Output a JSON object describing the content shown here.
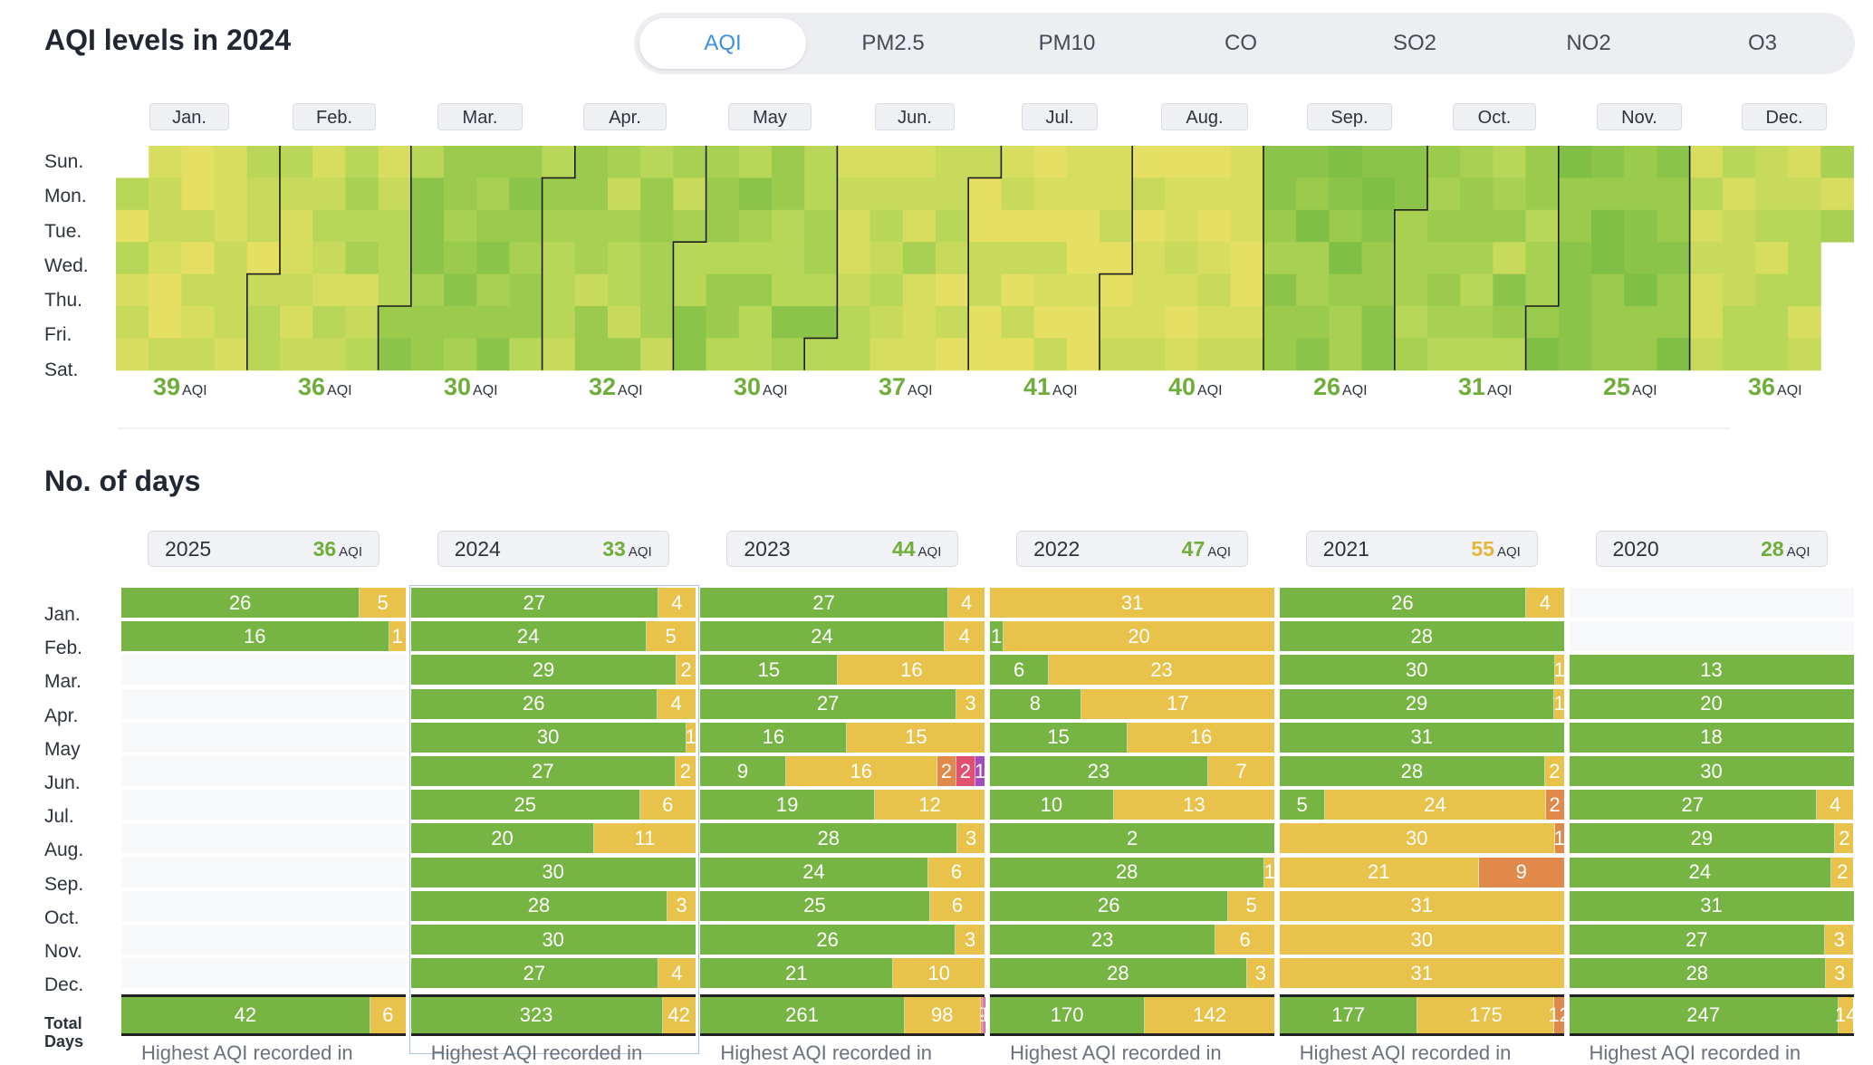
{
  "calendar": {
    "title": "AQI levels in 2024",
    "tabs": [
      {
        "label": "AQI",
        "active": true
      },
      {
        "label": "PM2.5",
        "active": false
      },
      {
        "label": "PM10",
        "active": false
      },
      {
        "label": "CO",
        "active": false
      },
      {
        "label": "SO2",
        "active": false
      },
      {
        "label": "NO2",
        "active": false
      },
      {
        "label": "O3",
        "active": false
      }
    ],
    "days": [
      "Sun.",
      "Mon.",
      "Tue.",
      "Wed.",
      "Thu.",
      "Fri.",
      "Sat."
    ],
    "months": [
      {
        "label": "Jan.",
        "avg": "39"
      },
      {
        "label": "Feb.",
        "avg": "36"
      },
      {
        "label": "Mar.",
        "avg": "30"
      },
      {
        "label": "Apr.",
        "avg": "32"
      },
      {
        "label": "May",
        "avg": "30"
      },
      {
        "label": "Jun.",
        "avg": "37"
      },
      {
        "label": "Jul.",
        "avg": "41"
      },
      {
        "label": "Aug.",
        "avg": "40"
      },
      {
        "label": "Sep.",
        "avg": "26"
      },
      {
        "label": "Oct.",
        "avg": "31"
      },
      {
        "label": "Nov.",
        "avg": "25"
      },
      {
        "label": "Dec.",
        "avg": "36"
      }
    ],
    "unit": "AQI"
  },
  "days_section": {
    "title": "No. of days",
    "colors": {
      "good": "#76b543",
      "moderate": "#e8c24a",
      "usg": "#e0894a",
      "unhealthy": "#e05070",
      "very_unhealthy": "#a54bc0",
      "avg_green": "#6fae3b",
      "avg_yellow": "#e3b53a"
    },
    "month_labels": [
      "Jan.",
      "Feb.",
      "Mar.",
      "Apr.",
      "May",
      "Jun.",
      "Jul.",
      "Aug.",
      "Sep.",
      "Oct.",
      "Nov.",
      "Dec."
    ],
    "total_label": "Total Days",
    "highest_text": "Highest AQI recorded in",
    "years": [
      {
        "year": "2025",
        "avg": "36",
        "avg_color": "green",
        "selected": false,
        "rows": [
          [
            26,
            5,
            0,
            0,
            0
          ],
          [
            16,
            1,
            0,
            0,
            0
          ],
          null,
          null,
          null,
          null,
          null,
          null,
          null,
          null,
          null,
          null
        ],
        "total": [
          42,
          6,
          0,
          0,
          0
        ]
      },
      {
        "year": "2024",
        "avg": "33",
        "avg_color": "green",
        "selected": true,
        "rows": [
          [
            27,
            4,
            0,
            0,
            0
          ],
          [
            24,
            5,
            0,
            0,
            0
          ],
          [
            29,
            2,
            0,
            0,
            0
          ],
          [
            26,
            4,
            0,
            0,
            0
          ],
          [
            30,
            1,
            0,
            0,
            0
          ],
          [
            27,
            2,
            0,
            0,
            0
          ],
          [
            25,
            6,
            0,
            0,
            0
          ],
          [
            20,
            11,
            0,
            0,
            0
          ],
          [
            30,
            0,
            0,
            0,
            0
          ],
          [
            28,
            3,
            0,
            0,
            0
          ],
          [
            30,
            0,
            0,
            0,
            0
          ],
          [
            27,
            4,
            0,
            0,
            0
          ]
        ],
        "total": [
          323,
          42,
          0,
          0,
          0
        ]
      },
      {
        "year": "2023",
        "avg": "44",
        "avg_color": "green",
        "selected": false,
        "rows": [
          [
            27,
            4,
            0,
            0,
            0
          ],
          [
            24,
            4,
            0,
            0,
            0
          ],
          [
            15,
            16,
            0,
            0,
            0
          ],
          [
            27,
            3,
            0,
            0,
            0
          ],
          [
            16,
            15,
            0,
            0,
            0
          ],
          [
            9,
            16,
            2,
            2,
            1
          ],
          [
            19,
            12,
            0,
            0,
            0
          ],
          [
            28,
            3,
            0,
            0,
            0
          ],
          [
            24,
            6,
            0,
            0,
            0
          ],
          [
            25,
            6,
            0,
            0,
            0
          ],
          [
            26,
            3,
            0,
            0,
            0
          ],
          [
            21,
            10,
            0,
            0,
            0
          ]
        ],
        "total": [
          261,
          98,
          2,
          2,
          1
        ]
      },
      {
        "year": "2022",
        "avg": "47",
        "avg_color": "green",
        "selected": false,
        "rows": [
          [
            0,
            31,
            0,
            0,
            0
          ],
          [
            1,
            20,
            0,
            0,
            0
          ],
          [
            6,
            23,
            0,
            0,
            0
          ],
          [
            8,
            17,
            0,
            0,
            0
          ],
          [
            15,
            16,
            0,
            0,
            0
          ],
          [
            23,
            7,
            0,
            0,
            0
          ],
          [
            10,
            13,
            0,
            0,
            0
          ],
          [
            2,
            0,
            0,
            0,
            0
          ],
          [
            28,
            1,
            0,
            0,
            0
          ],
          [
            26,
            5,
            0,
            0,
            0
          ],
          [
            23,
            6,
            0,
            0,
            0
          ],
          [
            28,
            3,
            0,
            0,
            0
          ]
        ],
        "total": [
          170,
          142,
          0,
          0,
          0
        ]
      },
      {
        "year": "2021",
        "avg": "55",
        "avg_color": "yellow",
        "selected": false,
        "rows": [
          [
            26,
            4,
            0,
            0,
            0
          ],
          [
            28,
            0,
            0,
            0,
            0
          ],
          [
            30,
            1,
            0,
            0,
            0
          ],
          [
            29,
            1,
            0,
            0,
            0
          ],
          [
            31,
            0,
            0,
            0,
            0
          ],
          [
            28,
            2,
            0,
            0,
            0
          ],
          [
            5,
            24,
            2,
            0,
            0
          ],
          [
            0,
            30,
            1,
            0,
            0
          ],
          [
            0,
            21,
            9,
            0,
            0
          ],
          [
            0,
            31,
            0,
            0,
            0
          ],
          [
            0,
            30,
            0,
            0,
            0
          ],
          [
            0,
            31,
            0,
            0,
            0
          ]
        ],
        "total": [
          177,
          175,
          12,
          0,
          0
        ]
      },
      {
        "year": "2020",
        "avg": "28",
        "avg_color": "green",
        "selected": false,
        "rows": [
          null,
          null,
          [
            13,
            0,
            0,
            0,
            0
          ],
          [
            20,
            0,
            0,
            0,
            0
          ],
          [
            18,
            0,
            0,
            0,
            0
          ],
          [
            30,
            0,
            0,
            0,
            0
          ],
          [
            27,
            4,
            0,
            0,
            0
          ],
          [
            29,
            2,
            0,
            0,
            0
          ],
          [
            24,
            2,
            0,
            0,
            0
          ],
          [
            31,
            0,
            0,
            0,
            0
          ],
          [
            27,
            3,
            0,
            0,
            0
          ],
          [
            28,
            3,
            0,
            0,
            0
          ]
        ],
        "total": [
          247,
          14,
          0,
          0,
          0
        ]
      }
    ]
  }
}
